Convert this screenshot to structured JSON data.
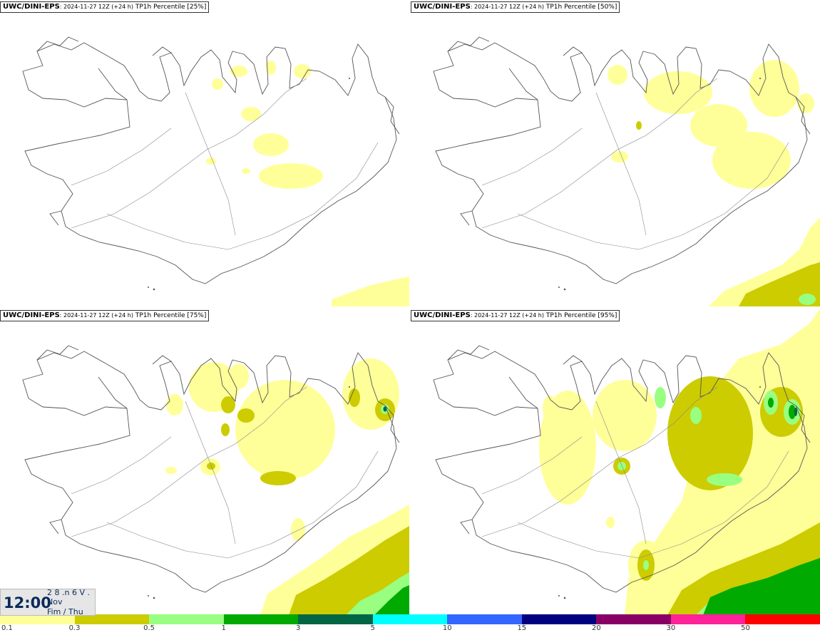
{
  "panels": [
    {
      "source": "UWC/DINI-EPS",
      "run": ": 2024-11-27 12Z (+24 h)",
      "param": "TP1h Percentile [25%]"
    },
    {
      "source": "UWC/DINI-EPS",
      "run": ": 2024-11-27 12Z (+24 h)",
      "param": "TP1h Percentile [50%]"
    },
    {
      "source": "UWC/DINI-EPS",
      "run": ": 2024-11-27 12Z (+24 h)",
      "param": "TP1h Percentile [75%]"
    },
    {
      "source": "UWC/DINI-EPS",
      "run": ": 2024-11-27 12Z (+24 h)",
      "param": "TP1h Percentile [95%]"
    }
  ],
  "valid_time": {
    "time": "12:00",
    "day_line": "2 8 .n 6 V .",
    "month": "Nov",
    "weekday": "Fim / Thu"
  },
  "legend": {
    "labels": [
      "0.1",
      "0.3",
      "0.5",
      "1",
      "3",
      "5",
      "10",
      "15",
      "20",
      "30",
      "50"
    ],
    "colors": [
      "#ffff99",
      "#cccc00",
      "#99ff80",
      "#00aa00",
      "#006644",
      "#00ffff",
      "#3366ff",
      "#000080",
      "#880066",
      "#ff2299",
      "#ff0000"
    ]
  },
  "colors": {
    "light_yellow": "#ffff99",
    "olive": "#cccc00",
    "light_green": "#99ff80",
    "green": "#00aa00",
    "dark_green": "#006644"
  }
}
